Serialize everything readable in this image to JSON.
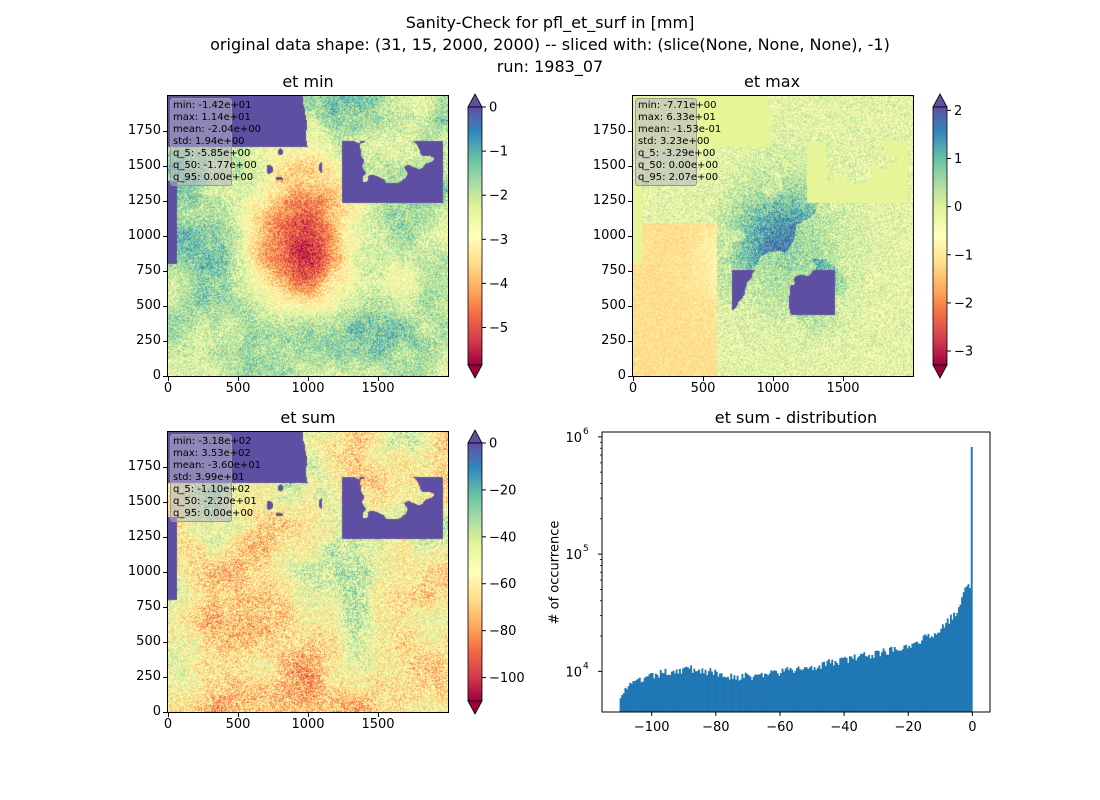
{
  "figure": {
    "suptitle_lines": [
      "Sanity-Check for pfl_et_surf in [mm]",
      "original data shape: (31, 15, 2000, 2000) -- sliced with: (slice(None, None, None), -1)",
      "run: 1983_07"
    ]
  },
  "chart_data": [
    {
      "type": "heatmap",
      "title": "et min",
      "colormap": "Spectral",
      "x_ticks": [
        "0",
        "500",
        "1000",
        "1500"
      ],
      "y_ticks": [
        "0",
        "250",
        "500",
        "750",
        "1000",
        "1250",
        "1500",
        "1750"
      ],
      "xlim": [
        0,
        2000
      ],
      "ylim": [
        0,
        2000
      ],
      "colorbar": {
        "ticks": [
          "0",
          "−1",
          "−2",
          "−3",
          "−4",
          "−5"
        ],
        "vmin": -5.85,
        "vmax": 0.0,
        "extend": "both"
      },
      "stats": [
        "min: -1.42e+01",
        "max: 1.14e+01",
        "mean: -2.04e+00",
        "std: 1.94e+00",
        "q_5: -5.85e+00",
        "q_50: -1.77e+00",
        "q_95: 0.00e+00"
      ]
    },
    {
      "type": "heatmap",
      "title": "et max",
      "colormap": "Spectral",
      "x_ticks": [
        "0",
        "500",
        "1000",
        "1500"
      ],
      "y_ticks": [
        "0",
        "250",
        "500",
        "750",
        "1000",
        "1250",
        "1500",
        "1750"
      ],
      "xlim": [
        0,
        2000
      ],
      "ylim": [
        0,
        2000
      ],
      "colorbar": {
        "ticks": [
          "2",
          "1",
          "0",
          "−1",
          "−2",
          "−3"
        ],
        "vmin": -3.29,
        "vmax": 2.07,
        "extend": "both"
      },
      "stats": [
        "min: -7.71e+00",
        "max: 6.33e+01",
        "mean: -1.53e-01",
        "std: 3.23e+00",
        "q_5: -3.29e+00",
        "q_50: 0.00e+00",
        "q_95: 2.07e+00"
      ]
    },
    {
      "type": "heatmap",
      "title": "et sum",
      "colormap": "Spectral",
      "x_ticks": [
        "0",
        "500",
        "1000",
        "1500"
      ],
      "y_ticks": [
        "0",
        "250",
        "500",
        "750",
        "1000",
        "1250",
        "1500",
        "1750"
      ],
      "xlim": [
        0,
        2000
      ],
      "ylim": [
        0,
        2000
      ],
      "colorbar": {
        "ticks": [
          "0",
          "−20",
          "−40",
          "−60",
          "−80",
          "−100"
        ],
        "vmin": -110.0,
        "vmax": 0.0,
        "extend": "both"
      },
      "stats": [
        "min: -3.18e+02",
        "max: 3.53e+02",
        "mean: -3.60e+01",
        "std: 3.99e+01",
        "q_5: -1.10e+02",
        "q_50: -2.20e+01",
        "q_95: 0.00e+00"
      ]
    },
    {
      "type": "bar",
      "title": "et sum - distribution",
      "ylabel": "# of occurrence",
      "yscale": "log",
      "xlim": [
        -115.5,
        5.5
      ],
      "ylim": [
        4500,
        1100000
      ],
      "x_ticks": [
        "−100",
        "−80",
        "−60",
        "−40",
        "−20",
        "0"
      ],
      "y_ticks": [
        "10",
        "10",
        "10"
      ],
      "y_tick_exponents": [
        "4",
        "5",
        "6"
      ],
      "color": "#1f77b4",
      "bin_range": [
        -110,
        0
      ],
      "bin_count": 220,
      "profile_x": [
        -110,
        -108,
        -104,
        -100,
        -96,
        -92,
        -88,
        -84,
        -80,
        -75,
        -70,
        -65,
        -60,
        -55,
        -50,
        -45,
        -40,
        -35,
        -30,
        -25,
        -20,
        -16,
        -12,
        -8,
        -5,
        -3,
        -2,
        -1,
        -0.5,
        0
      ],
      "profile_y": [
        6300,
        7200,
        8300,
        9000,
        9800,
        10200,
        10500,
        10200,
        9600,
        9100,
        9000,
        9400,
        9900,
        10300,
        11000,
        11700,
        12500,
        13300,
        14200,
        15300,
        16800,
        18500,
        21000,
        26000,
        32000,
        45000,
        55000,
        58000,
        48000,
        820000
      ]
    }
  ]
}
